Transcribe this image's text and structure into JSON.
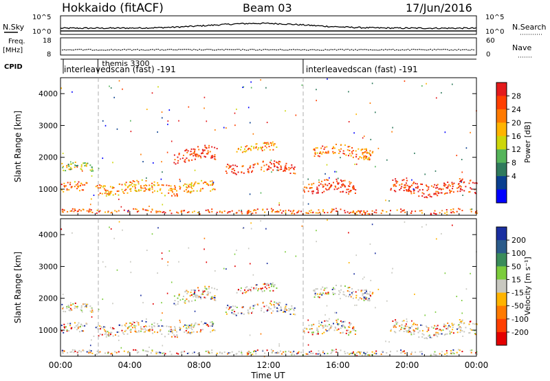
{
  "header": {
    "radar": "Hokkaido (fitACF)",
    "beam": "Beam 03",
    "date": "17/Jun/2016"
  },
  "top_panels": {
    "nsky_label": "N.Sky",
    "nsky_ticks": [
      "10^5",
      "10^0"
    ],
    "nsearch_label": "N.Search",
    "nsearch_ticks": [
      "10^5",
      "10^0"
    ],
    "freq_label_1": "Freq.",
    "freq_label_2": "[MHz]",
    "freq_ticks": [
      "18",
      "8"
    ],
    "nave_label": "Nave",
    "nave_ticks": [
      "60",
      "0"
    ],
    "cpid_label": "CPID",
    "cpid_entries": [
      {
        "text": "themis 3300",
        "time_h": 2.0
      },
      {
        "text": "interleavedscan (fast) -191",
        "time_h": 0.0
      },
      {
        "text": "interleavedscan (fast) -191",
        "time_h": 14.0
      }
    ]
  },
  "power_panel": {
    "ylabel": "Slant Range [km]",
    "colorbar_label": "Power [dB]",
    "colorbar_ticks": [
      "28",
      "24",
      "20",
      "16",
      "12",
      "8",
      "4"
    ],
    "colorbar_colors": [
      "#e41a1c",
      "#ff3f00",
      "#ff7a00",
      "#ffb400",
      "#cdd60b",
      "#55b45a",
      "#2f7a5c",
      "#0a3f8f",
      "#0000ff"
    ]
  },
  "velocity_panel": {
    "ylabel": "Slant Range [km]",
    "colorbar_label": "Velocity [m s⁻¹]",
    "colorbar_ticks": [
      "200",
      "100",
      "50",
      "15",
      "-15",
      "-50",
      "-100",
      "-200"
    ],
    "colorbar_colors": [
      "#1a2fa0",
      "#2b5b8a",
      "#3a8c5a",
      "#7ccc3c",
      "#c8c8c0",
      "#ffb400",
      "#ff7a00",
      "#ff3f00",
      "#e40000"
    ]
  },
  "y_ticks": [
    "4000",
    "3000",
    "2000",
    "1000"
  ],
  "x_ticks": [
    "00:00",
    "04:00",
    "08:00",
    "12:00",
    "16:00",
    "20:00",
    "00:00"
  ],
  "xlabel": "Time UT",
  "chart_data": {
    "type": "heatmap",
    "x_range_hours": [
      0,
      24
    ],
    "y_range_km": [
      180,
      4500
    ],
    "ylabel": "Slant Range [km]",
    "xlabel": "Time UT",
    "power_db_range": [
      0,
      30
    ],
    "velocity_range": [
      -200,
      200
    ],
    "echo_bands": [
      {
        "t_start": 0.0,
        "t_end": 1.5,
        "range_center_km": 1050,
        "range_width_km": 300,
        "power_db": 22
      },
      {
        "t_start": 0.0,
        "t_end": 2.0,
        "range_center_km": 1700,
        "range_width_km": 250,
        "power_db": 15
      },
      {
        "t_start": 2.0,
        "t_end": 9.0,
        "range_center_km": 1050,
        "range_width_km": 350,
        "power_db": 20
      },
      {
        "t_start": 6.5,
        "t_end": 9.0,
        "range_center_km": 2100,
        "range_width_km": 400,
        "power_db": 26
      },
      {
        "t_start": 9.5,
        "t_end": 13.5,
        "range_center_km": 1700,
        "range_width_km": 300,
        "power_db": 26
      },
      {
        "t_start": 10.0,
        "t_end": 12.5,
        "range_center_km": 2300,
        "range_width_km": 250,
        "power_db": 20
      },
      {
        "t_start": 14.0,
        "t_end": 17.0,
        "range_center_km": 1050,
        "range_width_km": 400,
        "power_db": 26
      },
      {
        "t_start": 14.5,
        "t_end": 18.0,
        "range_center_km": 2200,
        "range_width_km": 350,
        "power_db": 22
      },
      {
        "t_start": 19.0,
        "t_end": 24.0,
        "range_center_km": 1050,
        "range_width_km": 400,
        "power_db": 26
      },
      {
        "t_start": 0.0,
        "t_end": 24.0,
        "range_center_km": 320,
        "range_width_km": 120,
        "power_db": 24
      }
    ]
  }
}
